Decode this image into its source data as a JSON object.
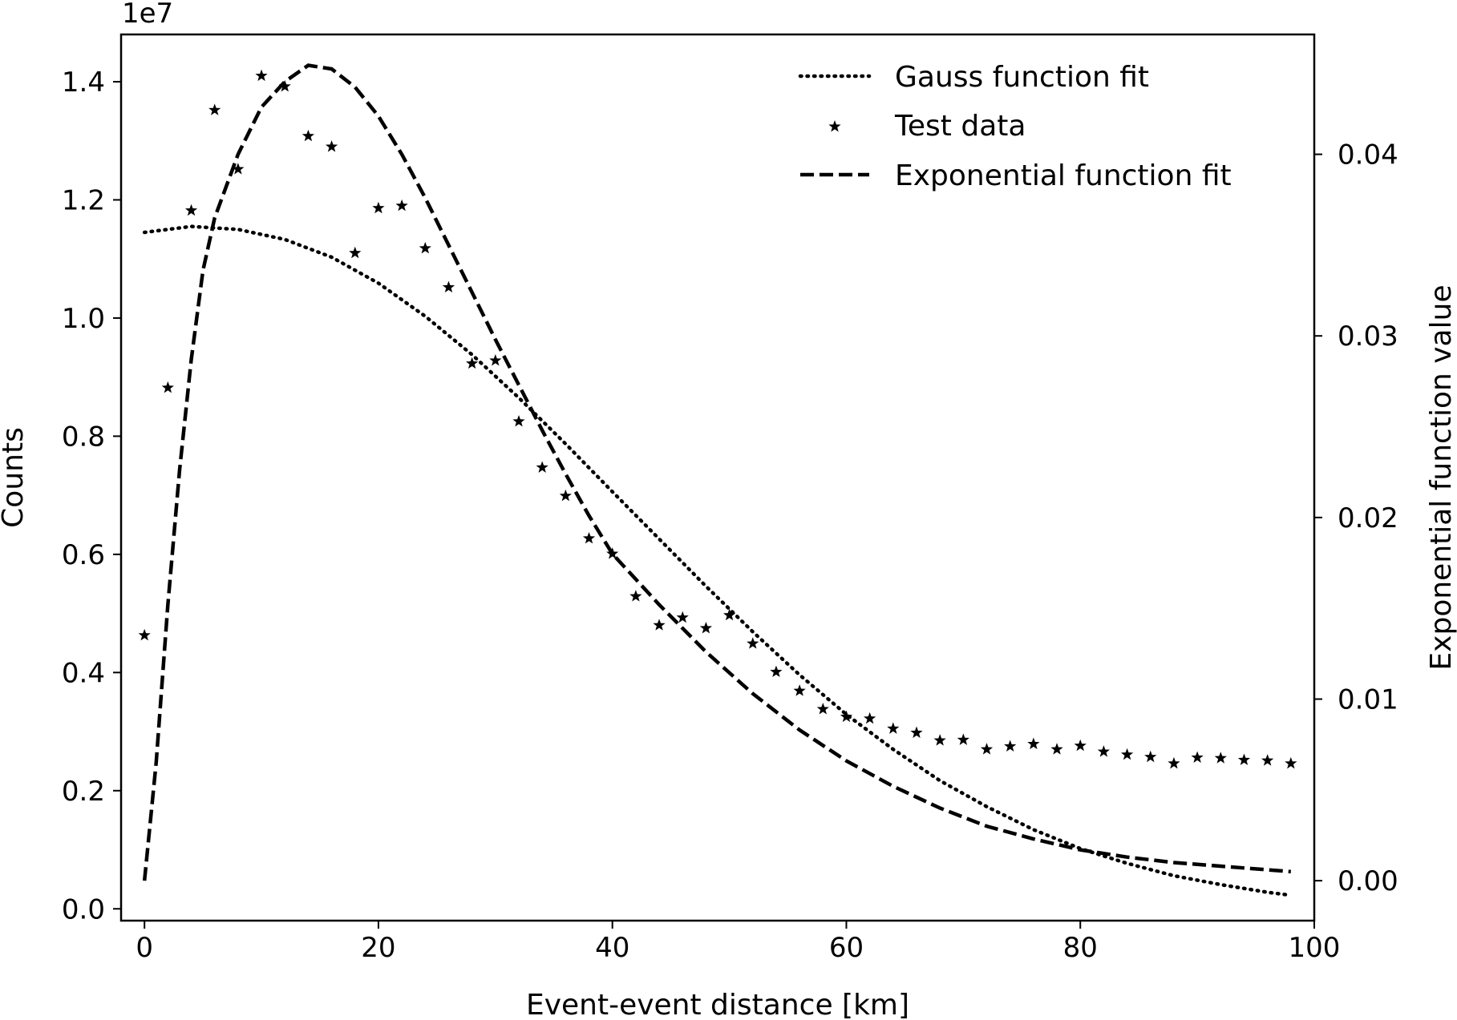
{
  "chart_data": {
    "type": "line",
    "xlabel": "Event-event distance [km]",
    "ylabel": "Counts",
    "y2label": "Exponential function value",
    "y_offset_label": "1e7",
    "xlim": [
      -2,
      100
    ],
    "ylim": [
      -0.02,
      1.48
    ],
    "y2lim": [
      -0.0022,
      0.0466
    ],
    "xticks": [
      0,
      20,
      40,
      60,
      80,
      100
    ],
    "xtick_labels": [
      "0",
      "20",
      "40",
      "60",
      "80",
      "100"
    ],
    "yticks": [
      0.0,
      0.2,
      0.4,
      0.6,
      0.8,
      1.0,
      1.2,
      1.4
    ],
    "ytick_labels": [
      "0.0",
      "0.2",
      "0.4",
      "0.6",
      "0.8",
      "1.0",
      "1.2",
      "1.4"
    ],
    "y2ticks": [
      0.0,
      0.01,
      0.02,
      0.03,
      0.04
    ],
    "y2tick_labels": [
      "0.00",
      "0.01",
      "0.02",
      "0.03",
      "0.04"
    ],
    "grid": false,
    "legend_position": "top-right",
    "legend": [
      "Gauss function fit",
      "Test data",
      "Exponential function fit"
    ],
    "series": [
      {
        "name": "Test data",
        "style": "star-markers",
        "axis": "left",
        "x": [
          0,
          2,
          4,
          6,
          8,
          10,
          12,
          14,
          16,
          18,
          20,
          22,
          24,
          26,
          28,
          30,
          32,
          34,
          36,
          38,
          40,
          42,
          44,
          46,
          48,
          50,
          52,
          54,
          56,
          58,
          60,
          62,
          64,
          66,
          68,
          70,
          72,
          74,
          76,
          78,
          80,
          82,
          84,
          86,
          88,
          90,
          92,
          94,
          96,
          98
        ],
        "y": [
          0.463,
          0.882,
          1.182,
          1.352,
          1.252,
          1.41,
          1.392,
          1.308,
          1.29,
          1.11,
          1.186,
          1.19,
          1.118,
          1.052,
          0.923,
          0.928,
          0.825,
          0.747,
          0.699,
          0.627,
          0.601,
          0.529,
          0.48,
          0.493,
          0.475,
          0.497,
          0.449,
          0.401,
          0.369,
          0.338,
          0.325,
          0.322,
          0.305,
          0.298,
          0.285,
          0.286,
          0.27,
          0.275,
          0.279,
          0.27,
          0.276,
          0.266,
          0.261,
          0.257,
          0.246,
          0.256,
          0.255,
          0.252,
          0.251,
          0.246
        ]
      },
      {
        "name": "Gauss function fit",
        "style": "dotted",
        "axis": "left",
        "x": [
          0,
          4,
          8,
          12,
          16,
          20,
          24,
          28,
          32,
          36,
          40,
          44,
          48,
          52,
          56,
          60,
          64,
          68,
          72,
          76,
          80,
          84,
          88,
          92,
          96,
          98
        ],
        "y": [
          1.145,
          1.155,
          1.15,
          1.133,
          1.103,
          1.059,
          1.003,
          0.938,
          0.865,
          0.787,
          0.706,
          0.626,
          0.546,
          0.469,
          0.396,
          0.329,
          0.27,
          0.217,
          0.173,
          0.134,
          0.102,
          0.077,
          0.056,
          0.041,
          0.028,
          0.023
        ]
      },
      {
        "name": "Exponential function fit",
        "style": "dashed",
        "axis": "right",
        "x": [
          0,
          1,
          2,
          3,
          4,
          5,
          6,
          8,
          10,
          12,
          14,
          16,
          18,
          20,
          22,
          24,
          26,
          28,
          30,
          32,
          34,
          36,
          38,
          40,
          44,
          48,
          52,
          56,
          60,
          64,
          68,
          72,
          76,
          80,
          84,
          88,
          92,
          96,
          98
        ],
        "y": [
          0.0,
          0.0065,
          0.0152,
          0.0226,
          0.0287,
          0.0336,
          0.0365,
          0.04,
          0.0426,
          0.044,
          0.0449,
          0.0447,
          0.0437,
          0.0421,
          0.04,
          0.0376,
          0.035,
          0.0324,
          0.0298,
          0.0273,
          0.0248,
          0.0224,
          0.0201,
          0.018,
          0.0152,
          0.0126,
          0.0103,
          0.0083,
          0.0066,
          0.0052,
          0.004,
          0.003,
          0.0023,
          0.0017,
          0.0013,
          0.001,
          0.0008,
          0.0006,
          0.0005
        ]
      }
    ]
  }
}
